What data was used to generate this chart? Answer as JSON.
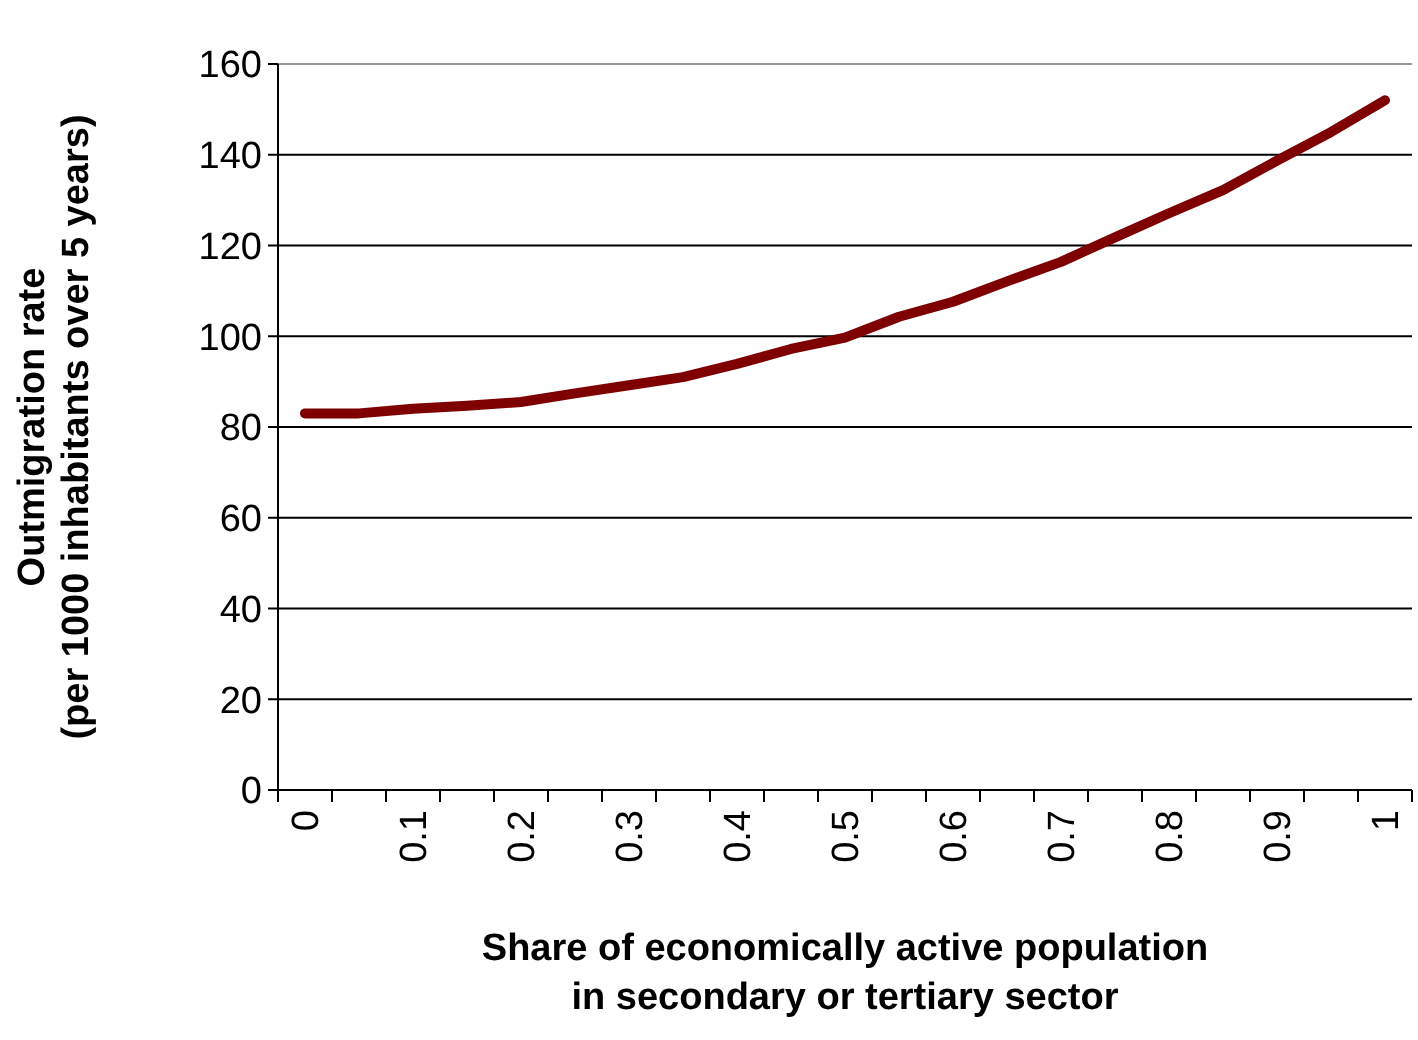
{
  "chart_data": {
    "type": "line",
    "xlabel": "Share of economically active population\nin secondary or tertiary sector",
    "ylabel": "Outmigration rate\n(per 1000 inhabitants over 5 years)",
    "categories": [
      "0",
      null,
      "0.1",
      null,
      "0.2",
      null,
      "0.3",
      null,
      "0.4",
      null,
      "0.5",
      null,
      "0.6",
      null,
      "0.7",
      null,
      "0.8",
      null,
      "0.9",
      null,
      "1"
    ],
    "series": [
      {
        "color": "#7f0000",
        "values": [
          83,
          83,
          84,
          84.7,
          85.5,
          87.4,
          89.2,
          91,
          93.9,
          97.2,
          99.7,
          104.3,
          107.6,
          112.1,
          116.4,
          121.8,
          127.1,
          132.2,
          138.7,
          145,
          152
        ]
      }
    ],
    "ylim": [
      0,
      160
    ],
    "yticks": [
      0,
      20,
      40,
      60,
      80,
      100,
      120,
      140,
      160
    ],
    "grid": "y",
    "marker": "none",
    "line_style": "solid"
  }
}
